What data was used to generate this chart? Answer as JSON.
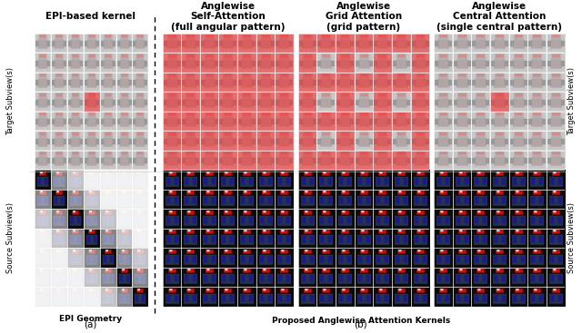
{
  "title_a": "EPI-based kernel",
  "title_b1": "Anglewise\nSelf-Attention\n(full angular pattern)",
  "title_b2": "Anglewise\nGrid Attention\n(grid pattern)",
  "title_b3": "Anglewise\nCentral Attention\n(single central pattern)",
  "label_bottom_a": "EPI Geometry",
  "label_bottom_b": "Proposed Anglewise Attention Kernels",
  "label_fig_a": "(a)",
  "label_fig_b": "(b)",
  "label_left_top": "Target Subview(s)",
  "label_left_bottom": "Source Subview(s)",
  "label_right_top": "Target Subview(s)",
  "label_right_bottom": "Source Subview(s)",
  "grid_n": 7,
  "bg_color": "#ffffff",
  "dashed_line_x": 0.265,
  "font_size_title": 7.5,
  "font_size_label": 6.5,
  "font_size_axis": 6.0
}
